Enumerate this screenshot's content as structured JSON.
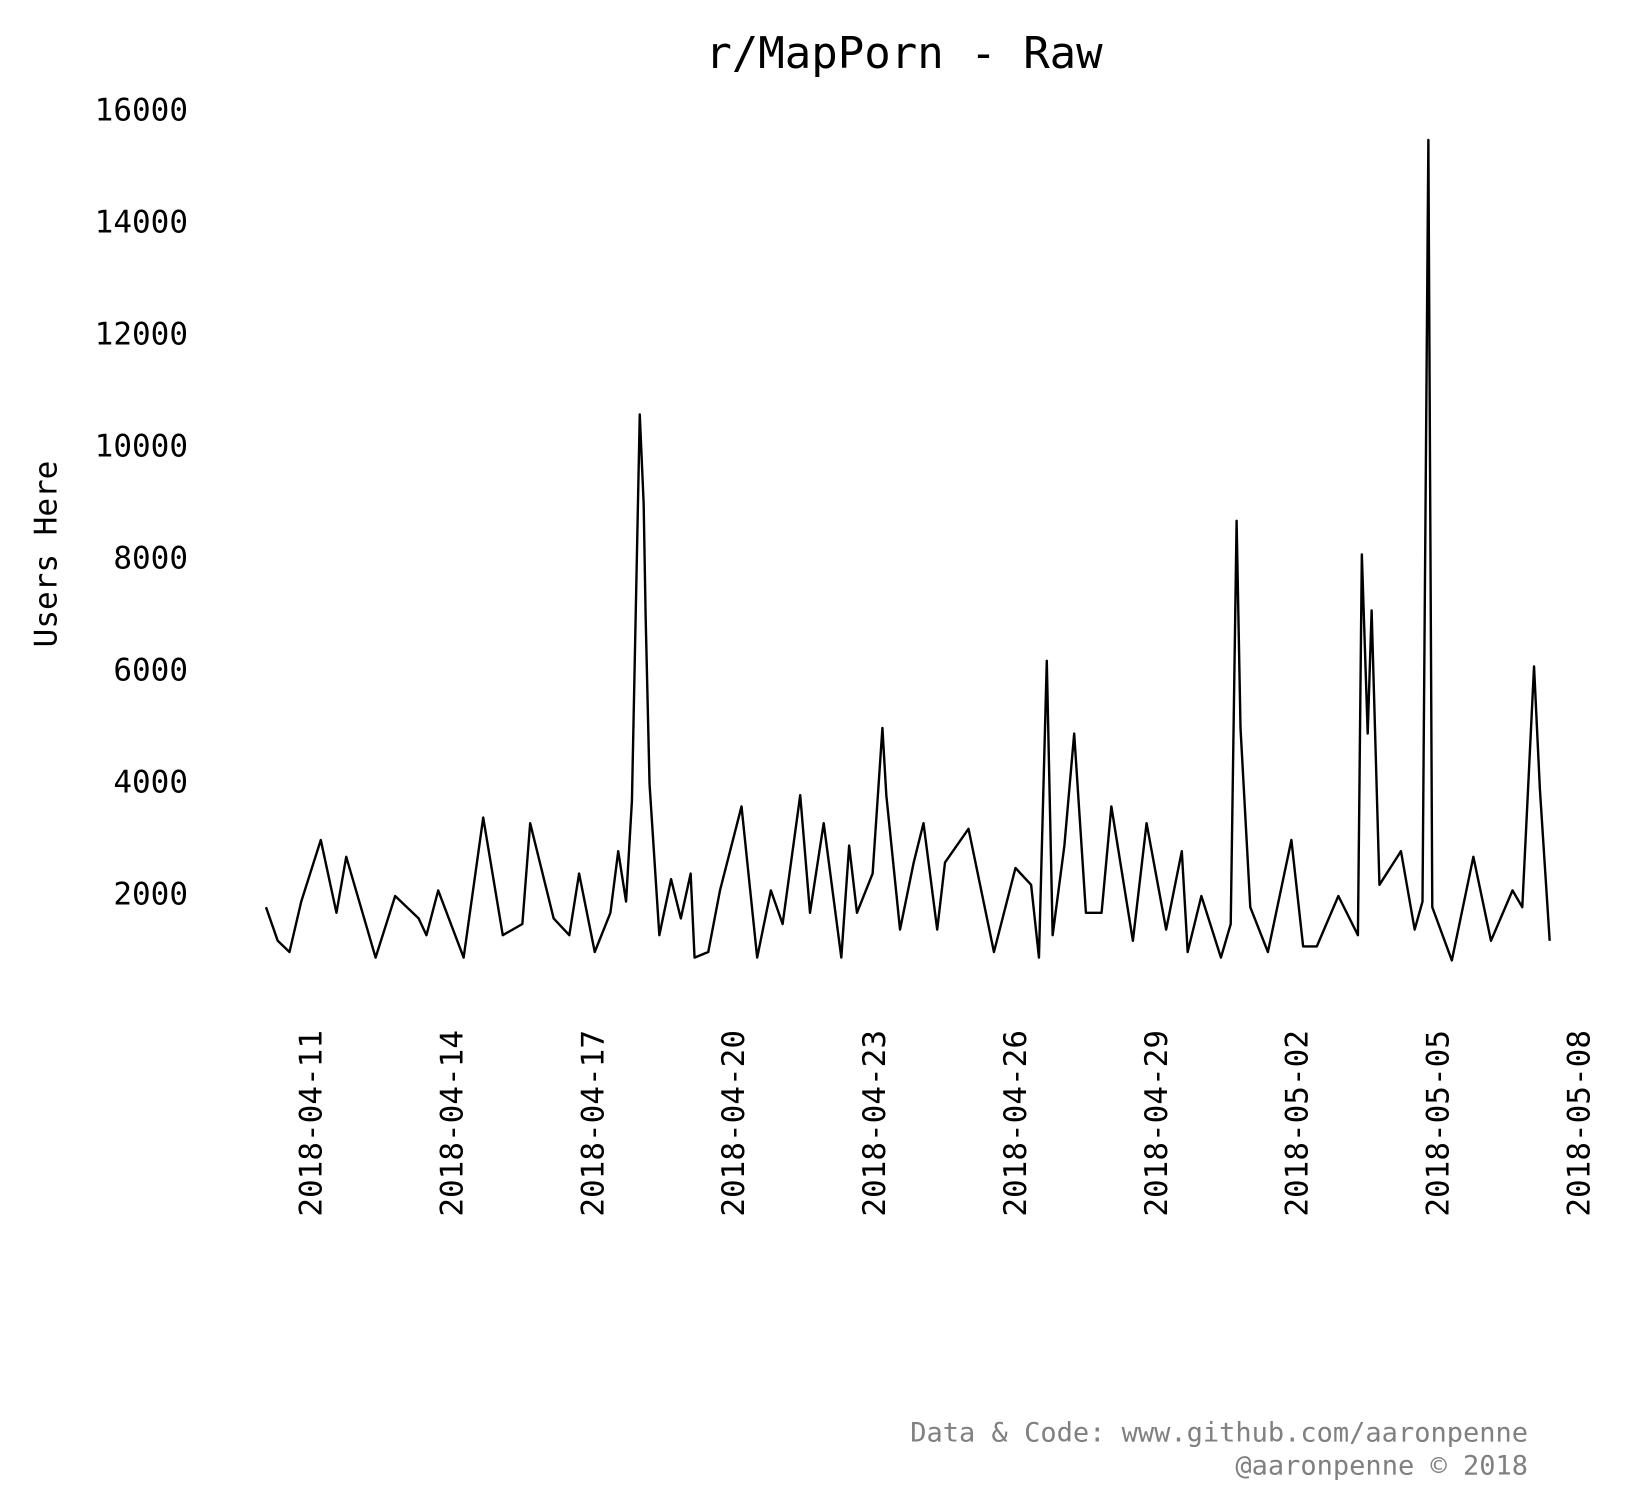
{
  "chart_data": {
    "type": "line",
    "title": "r/MapPorn - Raw",
    "y_label": "Users Here",
    "footer": [
      "Data & Code: www.github.com/aaronpenne",
      "@aaronpenne © 2018"
    ],
    "x": [
      "2018-04-10T00:00",
      "2018-04-10T06:00",
      "2018-04-10T12:00",
      "2018-04-10T18:00",
      "2018-04-11T04:00",
      "2018-04-11T12:00",
      "2018-04-11T17:00",
      "2018-04-12T08:00",
      "2018-04-12T18:00",
      "2018-04-13T06:00",
      "2018-04-13T10:00",
      "2018-04-13T16:00",
      "2018-04-14T05:00",
      "2018-04-14T15:00",
      "2018-04-15T01:00",
      "2018-04-15T11:00",
      "2018-04-15T15:00",
      "2018-04-16T03:00",
      "2018-04-16T11:00",
      "2018-04-16T16:00",
      "2018-04-17T00:00",
      "2018-04-17T08:00",
      "2018-04-17T12:00",
      "2018-04-17T16:00",
      "2018-04-17T19:00",
      "2018-04-17T23:00",
      "2018-04-18T01:00",
      "2018-04-18T02:00",
      "2018-04-18T04:00",
      "2018-04-18T09:00",
      "2018-04-18T15:00",
      "2018-04-18T20:00",
      "2018-04-19T01:00",
      "2018-04-19T03:00",
      "2018-04-19T10:00",
      "2018-04-19T16:00",
      "2018-04-20T03:00",
      "2018-04-20T11:00",
      "2018-04-20T18:00",
      "2018-04-21T00:00",
      "2018-04-21T09:00",
      "2018-04-21T14:00",
      "2018-04-21T21:00",
      "2018-04-22T06:00",
      "2018-04-22T10:00",
      "2018-04-22T14:00",
      "2018-04-22T22:00",
      "2018-04-23T03:00",
      "2018-04-23T05:00",
      "2018-04-23T12:00",
      "2018-04-23T19:00",
      "2018-04-24T00:00",
      "2018-04-24T07:00",
      "2018-04-24T11:00",
      "2018-04-24T23:00",
      "2018-04-25T12:00",
      "2018-04-25T23:00",
      "2018-04-26T07:00",
      "2018-04-26T11:00",
      "2018-04-26T15:00",
      "2018-04-26T18:00",
      "2018-04-27T00:00",
      "2018-04-27T05:00",
      "2018-04-27T11:00",
      "2018-04-27T19:00",
      "2018-04-28T00:00",
      "2018-04-28T11:00",
      "2018-04-28T18:00",
      "2018-04-29T04:00",
      "2018-04-29T12:00",
      "2018-04-29T15:00",
      "2018-04-29T22:00",
      "2018-04-30T08:00",
      "2018-04-30T13:00",
      "2018-04-30T16:00",
      "2018-04-30T18:00",
      "2018-04-30T23:00",
      "2018-05-01T08:00",
      "2018-05-01T20:00",
      "2018-05-02T02:00",
      "2018-05-02T09:00",
      "2018-05-02T20:00",
      "2018-05-03T06:00",
      "2018-05-03T08:00",
      "2018-05-03T11:00",
      "2018-05-03T13:00",
      "2018-05-03T17:00",
      "2018-05-04T04:00",
      "2018-05-04T11:00",
      "2018-05-04T15:00",
      "2018-05-04T18:00",
      "2018-05-04T20:00",
      "2018-05-05T06:00",
      "2018-05-05T17:00",
      "2018-05-06T02:00",
      "2018-05-06T13:00",
      "2018-05-06T18:00",
      "2018-05-07T00:00",
      "2018-05-07T03:00",
      "2018-05-07T08:00"
    ],
    "series": [
      {
        "name": "Users Here",
        "color": "#000000",
        "values": [
          1800,
          1200,
          1000,
          1900,
          3000,
          1700,
          2700,
          900,
          2000,
          1600,
          1300,
          2100,
          900,
          3400,
          1300,
          1500,
          3300,
          1600,
          1300,
          2400,
          1000,
          1700,
          2800,
          1900,
          3700,
          10600,
          9000,
          7000,
          4000,
          1300,
          2300,
          1600,
          2400,
          900,
          1000,
          2100,
          3600,
          900,
          2100,
          1500,
          3800,
          1700,
          3300,
          900,
          2900,
          1700,
          2400,
          5000,
          3800,
          1400,
          2600,
          3300,
          1400,
          2600,
          3200,
          1000,
          2500,
          2200,
          900,
          6200,
          1300,
          2900,
          4900,
          1700,
          1700,
          3600,
          1200,
          3300,
          1400,
          2800,
          1000,
          2000,
          900,
          1500,
          8700,
          5000,
          1800,
          1000,
          3000,
          1100,
          1100,
          2000,
          1300,
          8100,
          4900,
          7100,
          2200,
          2800,
          1400,
          1900,
          15500,
          1800,
          850,
          2700,
          1200,
          2100,
          1800,
          6100,
          3900,
          1200
        ]
      }
    ],
    "xlim": [
      "2018-04-10",
      "2018-05-08"
    ],
    "xticks": [
      "2018-04-11",
      "2018-04-14",
      "2018-04-17",
      "2018-04-20",
      "2018-04-23",
      "2018-04-26",
      "2018-04-29",
      "2018-05-02",
      "2018-05-05",
      "2018-05-08"
    ],
    "ylim": [
      0,
      16000
    ],
    "yticks": [
      2000,
      4000,
      6000,
      8000,
      10000,
      12000,
      14000,
      16000
    ],
    "grid": false
  }
}
